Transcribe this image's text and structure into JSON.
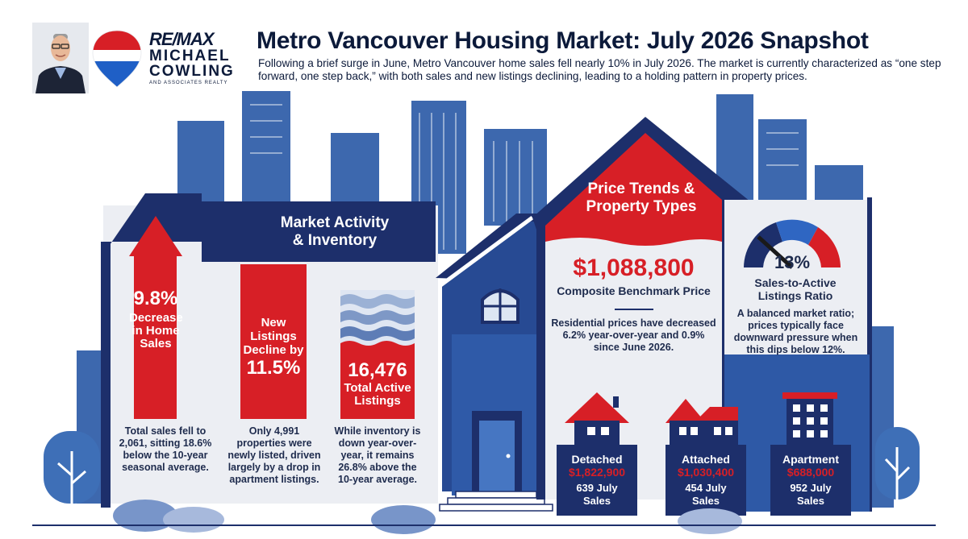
{
  "header": {
    "title": "Metro Vancouver Housing Market: July 2026 Snapshot",
    "subtitle": "Following a brief surge in June, Metro Vancouver home sales fell nearly 10% in July 2026. The market is currently characterized as “one step forward, one step back,” with both sales and new listings declining, leading to a holding pattern in property prices."
  },
  "logo": {
    "brand": "RE/MAX",
    "name_line1": "MICHAEL",
    "name_line2": "COWLING",
    "tagline": "AND ASSOCIATES REALTY"
  },
  "market_activity": {
    "title_line1": "Market Activity",
    "title_line2": "& Inventory",
    "sales": {
      "value": "9.8%",
      "label_line1": "Decrease",
      "label_line2": "in Home",
      "label_line3": "Sales",
      "note_line1": "Total sales fell to",
      "note_line2": "2,061, sitting 18.6%",
      "note_line3": "below the 10-year",
      "note_line4": "seasonal average."
    },
    "new_listings": {
      "label_line1": "New",
      "label_line2": "Listings",
      "label_line3": "Decline by",
      "value": "11.5%",
      "note_line1": "Only 4,991",
      "note_line2": "properties were",
      "note_line3": "newly listed, driven",
      "note_line4": "largely by a drop in",
      "note_line5": "apartment listings."
    },
    "active_listings": {
      "value": "16,476",
      "label_line1": "Total Active",
      "label_line2": "Listings",
      "note_line1": "While inventory is",
      "note_line2": "down year-over-",
      "note_line3": "year, it remains",
      "note_line4": "26.8% above the",
      "note_line5": "10-year average."
    }
  },
  "price_trends": {
    "title_line1": "Price Trends &",
    "title_line2": "Property Types",
    "benchmark_value": "$1,088,800",
    "benchmark_label": "Composite Benchmark Price",
    "note_line1": "Residential prices have decreased",
    "note_line2": "6.2% year-over-year and 0.9%",
    "note_line3": "since June 2026."
  },
  "ratio": {
    "value": "13%",
    "gauge_level": 0.13,
    "label_line1": "Sales-to-Active",
    "label_line2": "Listings Ratio",
    "note_line1": "A balanced market ratio;",
    "note_line2": "prices typically face",
    "note_line3": "downward pressure when",
    "note_line4": "this dips below 12%."
  },
  "property_types": [
    {
      "name": "Detached",
      "price": "$1,822,900",
      "sales_line1": "639 July",
      "sales_line2": "Sales",
      "icon": "detached-house-icon"
    },
    {
      "name": "Attached",
      "price": "$1,030,400",
      "sales_line1": "454 July",
      "sales_line2": "Sales",
      "icon": "townhouse-icon"
    },
    {
      "name": "Apartment",
      "price": "$688,000",
      "sales_line1": "952 July",
      "sales_line2": "Sales",
      "icon": "apartment-building-icon"
    }
  ],
  "colors": {
    "navy": "#1d2f6b",
    "red": "#d71f26",
    "light_blue": "#3e6fb7",
    "pale_panel": "#eef0f4"
  }
}
